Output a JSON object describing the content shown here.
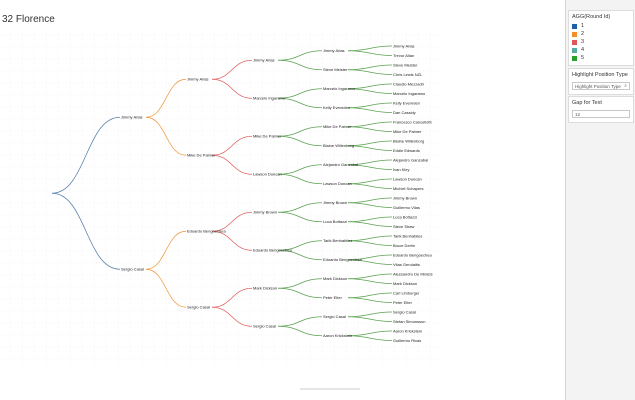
{
  "page": {
    "title": "32 Florence"
  },
  "colors": {
    "level1": "#4e79a7",
    "level2": "#f28e2b",
    "level3": "#e15759",
    "level4": "#59a14f"
  },
  "legend": {
    "title": "AGG(Round Id)",
    "items": [
      {
        "label": "1",
        "color": "#1f5fa8"
      },
      {
        "label": "2",
        "color": "#f28e2b"
      },
      {
        "label": "3",
        "color": "#e15759"
      },
      {
        "label": "4",
        "color": "#59a9a6"
      },
      {
        "label": "5",
        "color": "#2ca02c"
      }
    ]
  },
  "highlight": {
    "title": "Highlight Position Type",
    "placeholder": "Highlight Position Type"
  },
  "gap": {
    "title": "Gap for Text",
    "value": "12"
  },
  "bracket": {
    "root": "",
    "round1": [
      "Jimmy Arias",
      "Sergio Casal"
    ],
    "round2": [
      "Jimmy Arias",
      "Mike De Palmer",
      "Eduardo Bengoechea",
      "Sergio Casal"
    ],
    "round3": [
      "Jimmy Arias",
      "Marcelo Ingaramo",
      "Mike De Palmer",
      "Lawson Duncan",
      "Jimmy Brown",
      "Eduardo Bengoechea",
      "Mark Dickson",
      "Sergio Casal"
    ],
    "round4": [
      "Jimmy Arias",
      "Steve Meister",
      "Marcelo Ingaramo",
      "Kelly Evernden",
      "Mike De Palmer",
      "Blaine Willenborg",
      "Alejandro Ganzabal",
      "Lawson Duncan",
      "Jimmy Brown",
      "Luca Bottazzi",
      "Tarik Benhabiles",
      "Eduardo Bengoechea",
      "Mark Dickson",
      "Peter Elter",
      "Sergio Casal",
      "Aaron Krickstein"
    ],
    "round5": [
      "Jimmy Arias",
      "Trevor Allan",
      "Steve Meister",
      "Chris Lewis NZL",
      "Claudio Mezzadri",
      "Marcelo Ingaramo",
      "Kelly Evernden",
      "Dan Cassidy",
      "Francesco Cancellotti",
      "Mike De Palmer",
      "Blaine Willenborg",
      "Eddie Edwards",
      "Alejandro Ganzabal",
      "Ivan Kley",
      "Lawson Duncan",
      "Michiel Schapers",
      "Jimmy Brown",
      "Guillermo Vilas",
      "Luca Bottazzi",
      "Steve Shaw",
      "Tarik Benhabiles",
      "Bruce Derlin",
      "Eduardo Bengoechea",
      "Vitas Gerulaitis",
      "Alessandro De Minicis",
      "Mark Dickson",
      "Carl Limberger",
      "Peter Elter",
      "Sergio Casal",
      "Stefan Simonsson",
      "Aaron Krickstein",
      "Guillermo Rivas"
    ]
  }
}
